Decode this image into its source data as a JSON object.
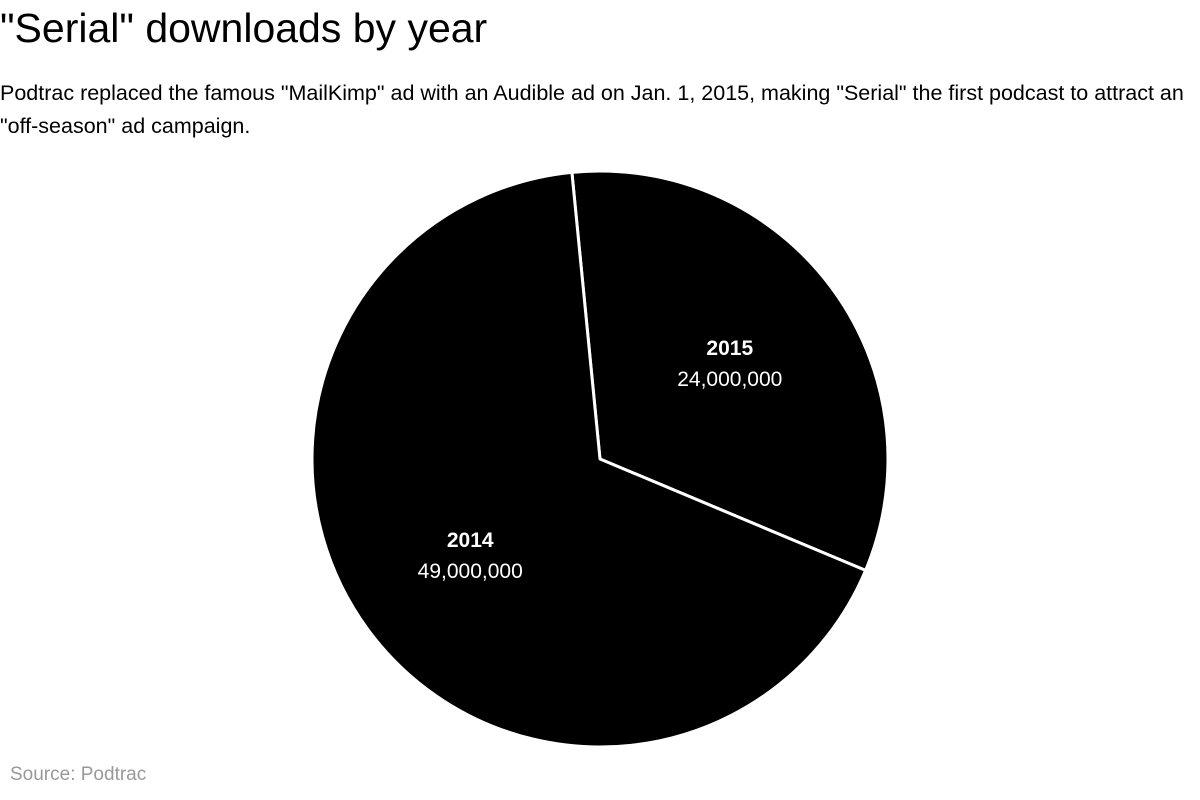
{
  "chart_data": {
    "type": "pie",
    "title": "\"Serial\" downloads by year",
    "subtitle": "Podtrac replaced the famous \"MailKimp\" ad with an Audible ad on Jan. 1, 2015, making \"Serial\" the first podcast to attract an \"off-season\" ad campaign.",
    "categories": [
      "2015",
      "2014"
    ],
    "values": [
      24000000,
      49000000
    ],
    "value_labels": [
      "24,000,000",
      "49,000,000"
    ],
    "colors": [
      "#000000",
      "#000000"
    ],
    "slice_border_color": "#ffffff",
    "legend": "none",
    "source": "Source: Podtrac"
  }
}
